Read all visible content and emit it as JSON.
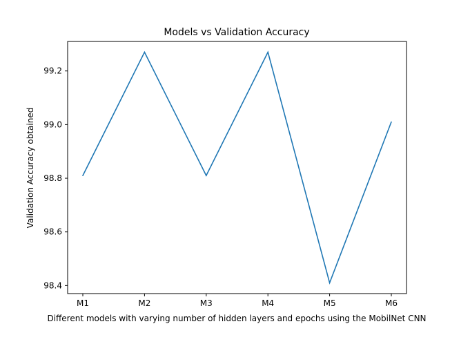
{
  "chart_data": {
    "type": "line",
    "title": "Models vs Validation Accuracy",
    "xlabel": "Different models with varying number of hidden layers and epochs using the MobilNet CNN",
    "ylabel": "Validation Accuracy obtained",
    "categories": [
      "M1",
      "M2",
      "M3",
      "M4",
      "M5",
      "M6"
    ],
    "values": [
      98.81,
      99.27,
      98.81,
      99.27,
      98.41,
      99.01
    ],
    "ylim": [
      98.37,
      99.31
    ],
    "yticks": [
      98.4,
      98.6,
      98.8,
      99.0,
      99.2
    ],
    "ytick_labels": [
      "98.4",
      "98.6",
      "98.8",
      "99.0",
      "99.2"
    ],
    "grid": false,
    "line_color": "#1f77b4"
  }
}
